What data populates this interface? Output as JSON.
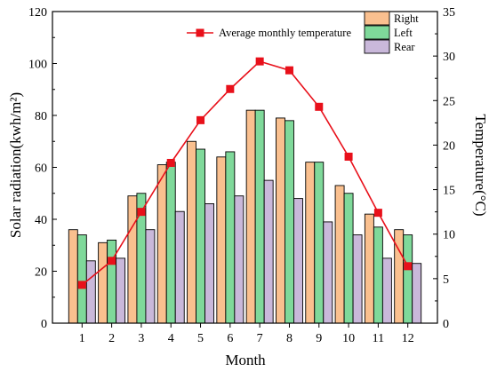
{
  "chart_data": {
    "type": "bar",
    "categories": [
      "1",
      "2",
      "3",
      "4",
      "5",
      "6",
      "7",
      "8",
      "9",
      "10",
      "11",
      "12"
    ],
    "xlabel": "Month",
    "ylabel": "Solar radiation(kwh/m²)",
    "ylabel_right": "Temperature(°C)",
    "ylim": [
      0,
      120
    ],
    "yticks": [
      0,
      20,
      40,
      60,
      80,
      100,
      120
    ],
    "ylim_right": [
      0,
      35
    ],
    "yticks_right": [
      0,
      5,
      10,
      15,
      20,
      25,
      30,
      35
    ],
    "grid": false,
    "legend_position": "top",
    "series": [
      {
        "name": "Right",
        "type": "bar",
        "axis": "left",
        "color": "#FAC08F",
        "values": [
          36,
          31,
          49,
          61,
          70,
          64,
          82,
          79,
          62,
          53,
          42,
          36
        ]
      },
      {
        "name": "Left",
        "type": "bar",
        "axis": "left",
        "color": "#7FD99A",
        "values": [
          34,
          32,
          50,
          62,
          67,
          66,
          82,
          78,
          62,
          50,
          37,
          34
        ]
      },
      {
        "name": "Rear",
        "type": "bar",
        "axis": "left",
        "color": "#C9B8DA",
        "values": [
          24,
          25,
          36,
          43,
          46,
          49,
          55,
          48,
          39,
          34,
          25,
          23
        ]
      },
      {
        "name": "Average monthly temperature",
        "type": "line",
        "axis": "right",
        "color": "#E8101A",
        "values": [
          4.3,
          7.0,
          12.5,
          18.0,
          22.8,
          26.3,
          29.4,
          28.4,
          24.3,
          18.7,
          12.4,
          6.4
        ]
      }
    ]
  }
}
